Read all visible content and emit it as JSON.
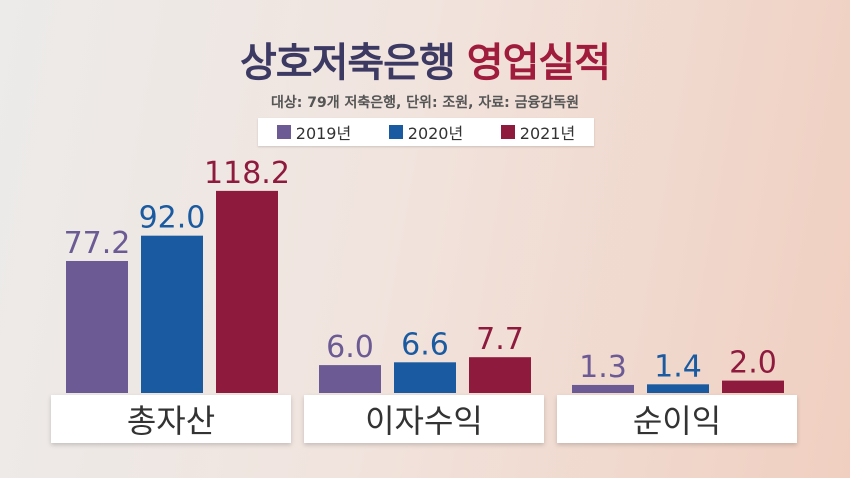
{
  "title": {
    "part1": "상호저축은행",
    "part2": "영업실적"
  },
  "subtitle": "대상: 79개 저축은행, 단위: 조원, 자료: 금융감독원",
  "colors": {
    "2019": "#6b5a93",
    "2020": "#1a5aa0",
    "2021": "#8e1a3d"
  },
  "chart_data": {
    "type": "bar",
    "categories": [
      "총자산",
      "이자수익",
      "순이익"
    ],
    "series": [
      {
        "name": "2019년",
        "values": [
          77.2,
          6.0,
          1.3
        ]
      },
      {
        "name": "2020년",
        "values": [
          92.0,
          6.6,
          1.4
        ]
      },
      {
        "name": "2021년",
        "values": [
          118.2,
          7.7,
          2.0
        ]
      }
    ],
    "value_labels": [
      [
        "77.2",
        "6.0",
        "1.3"
      ],
      [
        "92.0",
        "6.6",
        "1.4"
      ],
      [
        "118.2",
        "7.7",
        "2.0"
      ]
    ],
    "title": "상호저축은행 영업실적",
    "legend_position": "top"
  }
}
